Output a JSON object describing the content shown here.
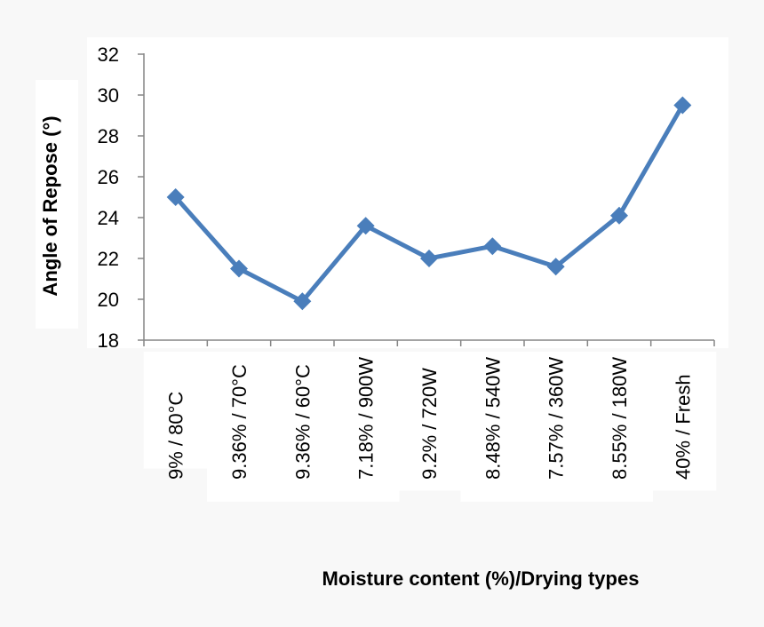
{
  "chart_data": {
    "type": "line",
    "title": "",
    "xlabel": "Moisture content (%)/Drying types",
    "ylabel": "Angle of Repose (°)",
    "ylim": [
      18,
      32
    ],
    "yticks": [
      18,
      20,
      22,
      24,
      26,
      28,
      30,
      32
    ],
    "categories": [
      "9% / 80°C",
      "9.36% / 70°C",
      "9.36% / 60°C",
      "7.18% / 900W",
      "9.2% / 720W",
      "8.48% / 540W",
      "7.57% / 360W",
      "8.55% / 180W",
      "40% / Fresh"
    ],
    "series": [
      {
        "values": [
          25.0,
          21.5,
          19.9,
          23.6,
          22.0,
          22.6,
          21.6,
          24.1,
          29.5
        ],
        "color": "#4a7ebb",
        "marker": "diamond"
      }
    ],
    "grid": false,
    "legend": "none"
  }
}
